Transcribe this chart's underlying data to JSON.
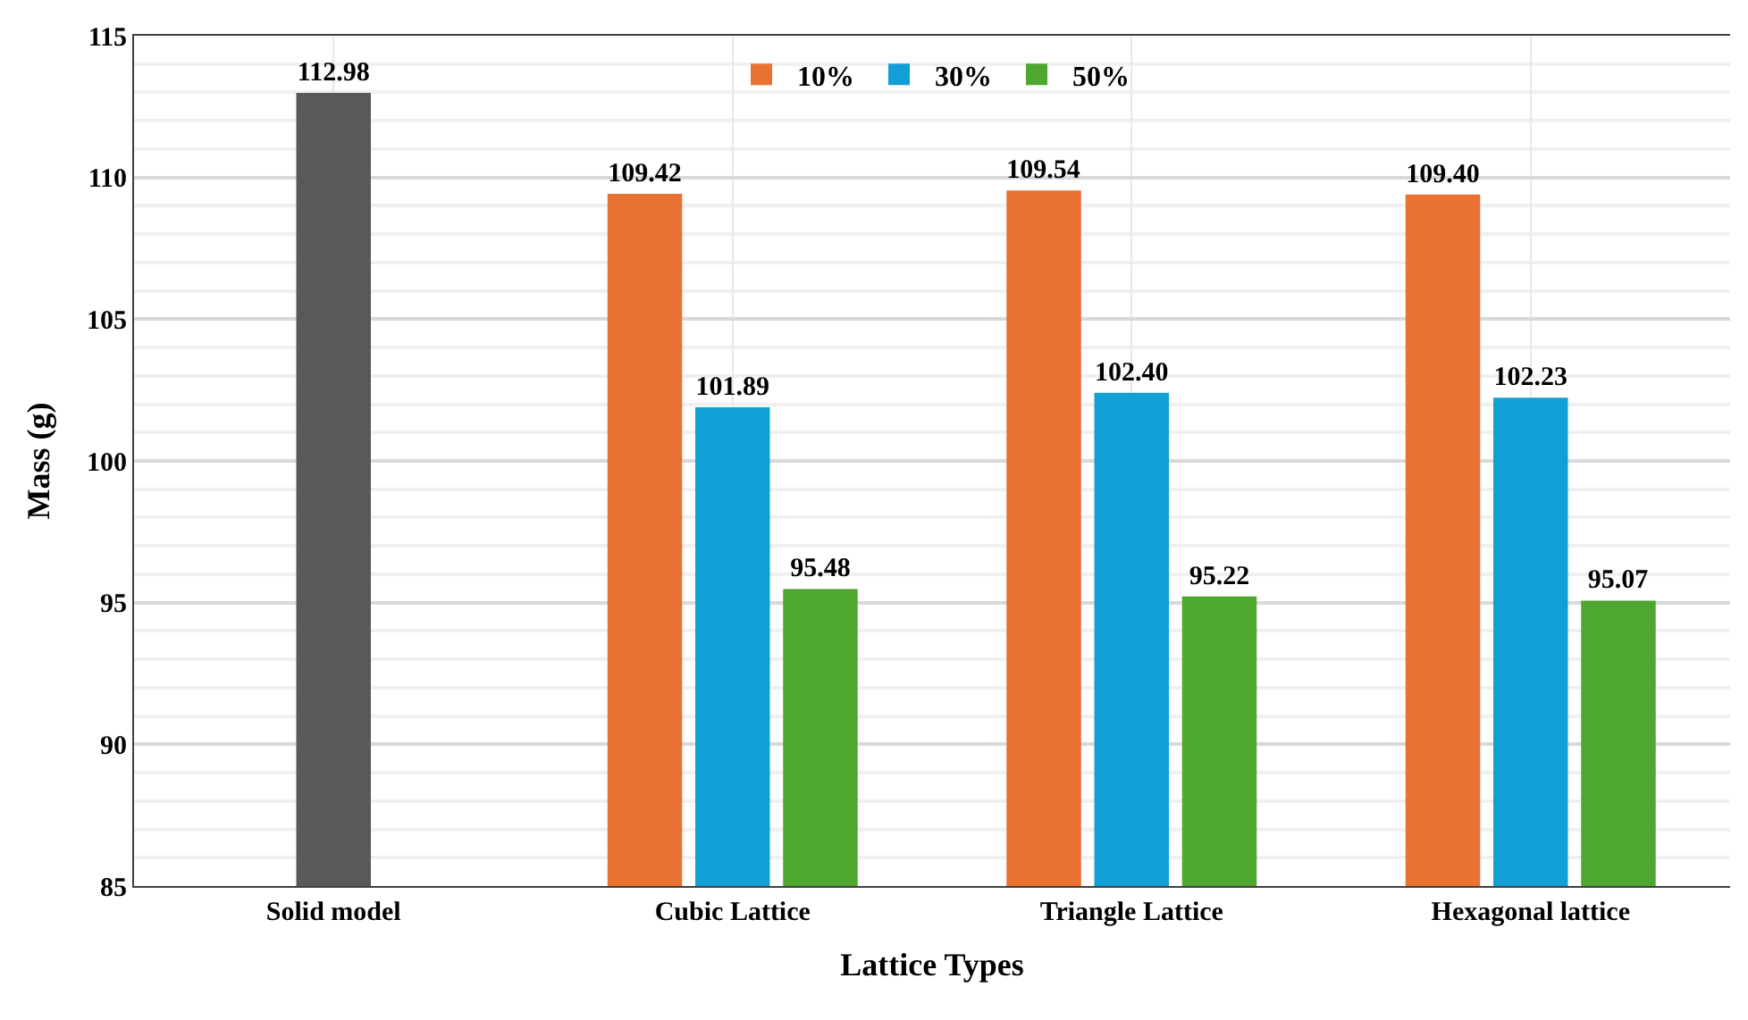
{
  "chart_data": {
    "type": "bar",
    "xlabel": "Lattice Types",
    "ylabel": "Mass (g)",
    "categories": [
      "Solid model",
      "Cubic Lattice",
      "Triangle Lattice",
      "Hexagonal lattice"
    ],
    "series": [
      {
        "color": "#595959",
        "values": [
          112.98,
          null,
          null,
          null
        ],
        "value_labels": [
          "112.98",
          null,
          null,
          null
        ]
      },
      {
        "name": "10%",
        "color": "#e97132",
        "values": [
          null,
          109.42,
          109.54,
          109.4
        ],
        "value_labels": [
          null,
          "109.42",
          "109.54",
          "109.40"
        ]
      },
      {
        "name": "30%",
        "color": "#129fd6",
        "values": [
          null,
          101.89,
          102.4,
          102.23
        ],
        "value_labels": [
          null,
          "101.89",
          "102.40",
          "102.23"
        ]
      },
      {
        "name": "50%",
        "color": "#4ea72e",
        "values": [
          null,
          95.48,
          95.22,
          95.07
        ],
        "value_labels": [
          null,
          "95.48",
          "95.22",
          "95.07"
        ]
      }
    ],
    "ylim": [
      85,
      115
    ],
    "yticks": [
      85,
      90,
      95,
      100,
      105,
      110,
      115
    ],
    "grid": true,
    "legend": "top"
  }
}
